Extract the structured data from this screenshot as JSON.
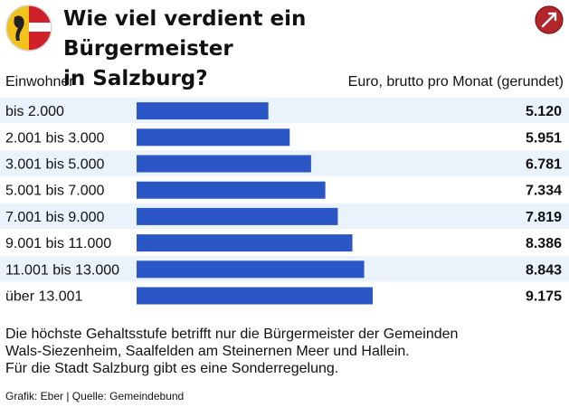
{
  "header": {
    "title_line1": "Wie viel verdient ein Bürgermeister",
    "title_line2": "in Salzburg?"
  },
  "logo": {
    "icon": "salzburg-coat-of-arms-icon",
    "colors": {
      "red": "#d0202a",
      "gold": "#f2c21a",
      "white": "#ffffff"
    }
  },
  "corner_icon": {
    "icon": "brand-badge-icon",
    "color": "#b3262b"
  },
  "columns": {
    "left_label": "Einwohner",
    "right_label": "Euro, brutto pro Monat (gerundet)"
  },
  "chart_data": {
    "type": "bar",
    "orientation": "horizontal",
    "categories": [
      "bis 2.000",
      "2.001 bis 3.000",
      "3.001 bis 5.000",
      "5.001 bis 7.000",
      "7.001 bis 9.000",
      "9.001 bis 11.000",
      "11.001 bis 13.000",
      "über 13.001"
    ],
    "values": [
      5120,
      5951,
      6781,
      7334,
      7819,
      8386,
      8843,
      9175
    ],
    "value_labels": [
      "5.120",
      "5.951",
      "6.781",
      "7.334",
      "7.819",
      "8.386",
      "8.843",
      "9.175"
    ],
    "xlim": [
      0,
      9175
    ],
    "grid": false,
    "bar_color": "#2a56c6",
    "row_stripe_color": "#eaf2fb"
  },
  "note": {
    "line1": "Die höchste Gehaltsstufe betrifft nur die Bürgermeister der Gemeinden",
    "line2": "Wals-Siezenheim, Saalfelden am Steinernen Meer und Hallein.",
    "line3": "Für die Stadt Salzburg gibt es eine Sonderregelung."
  },
  "source": "Grafik: Eber | Quelle: Gemeindebund"
}
